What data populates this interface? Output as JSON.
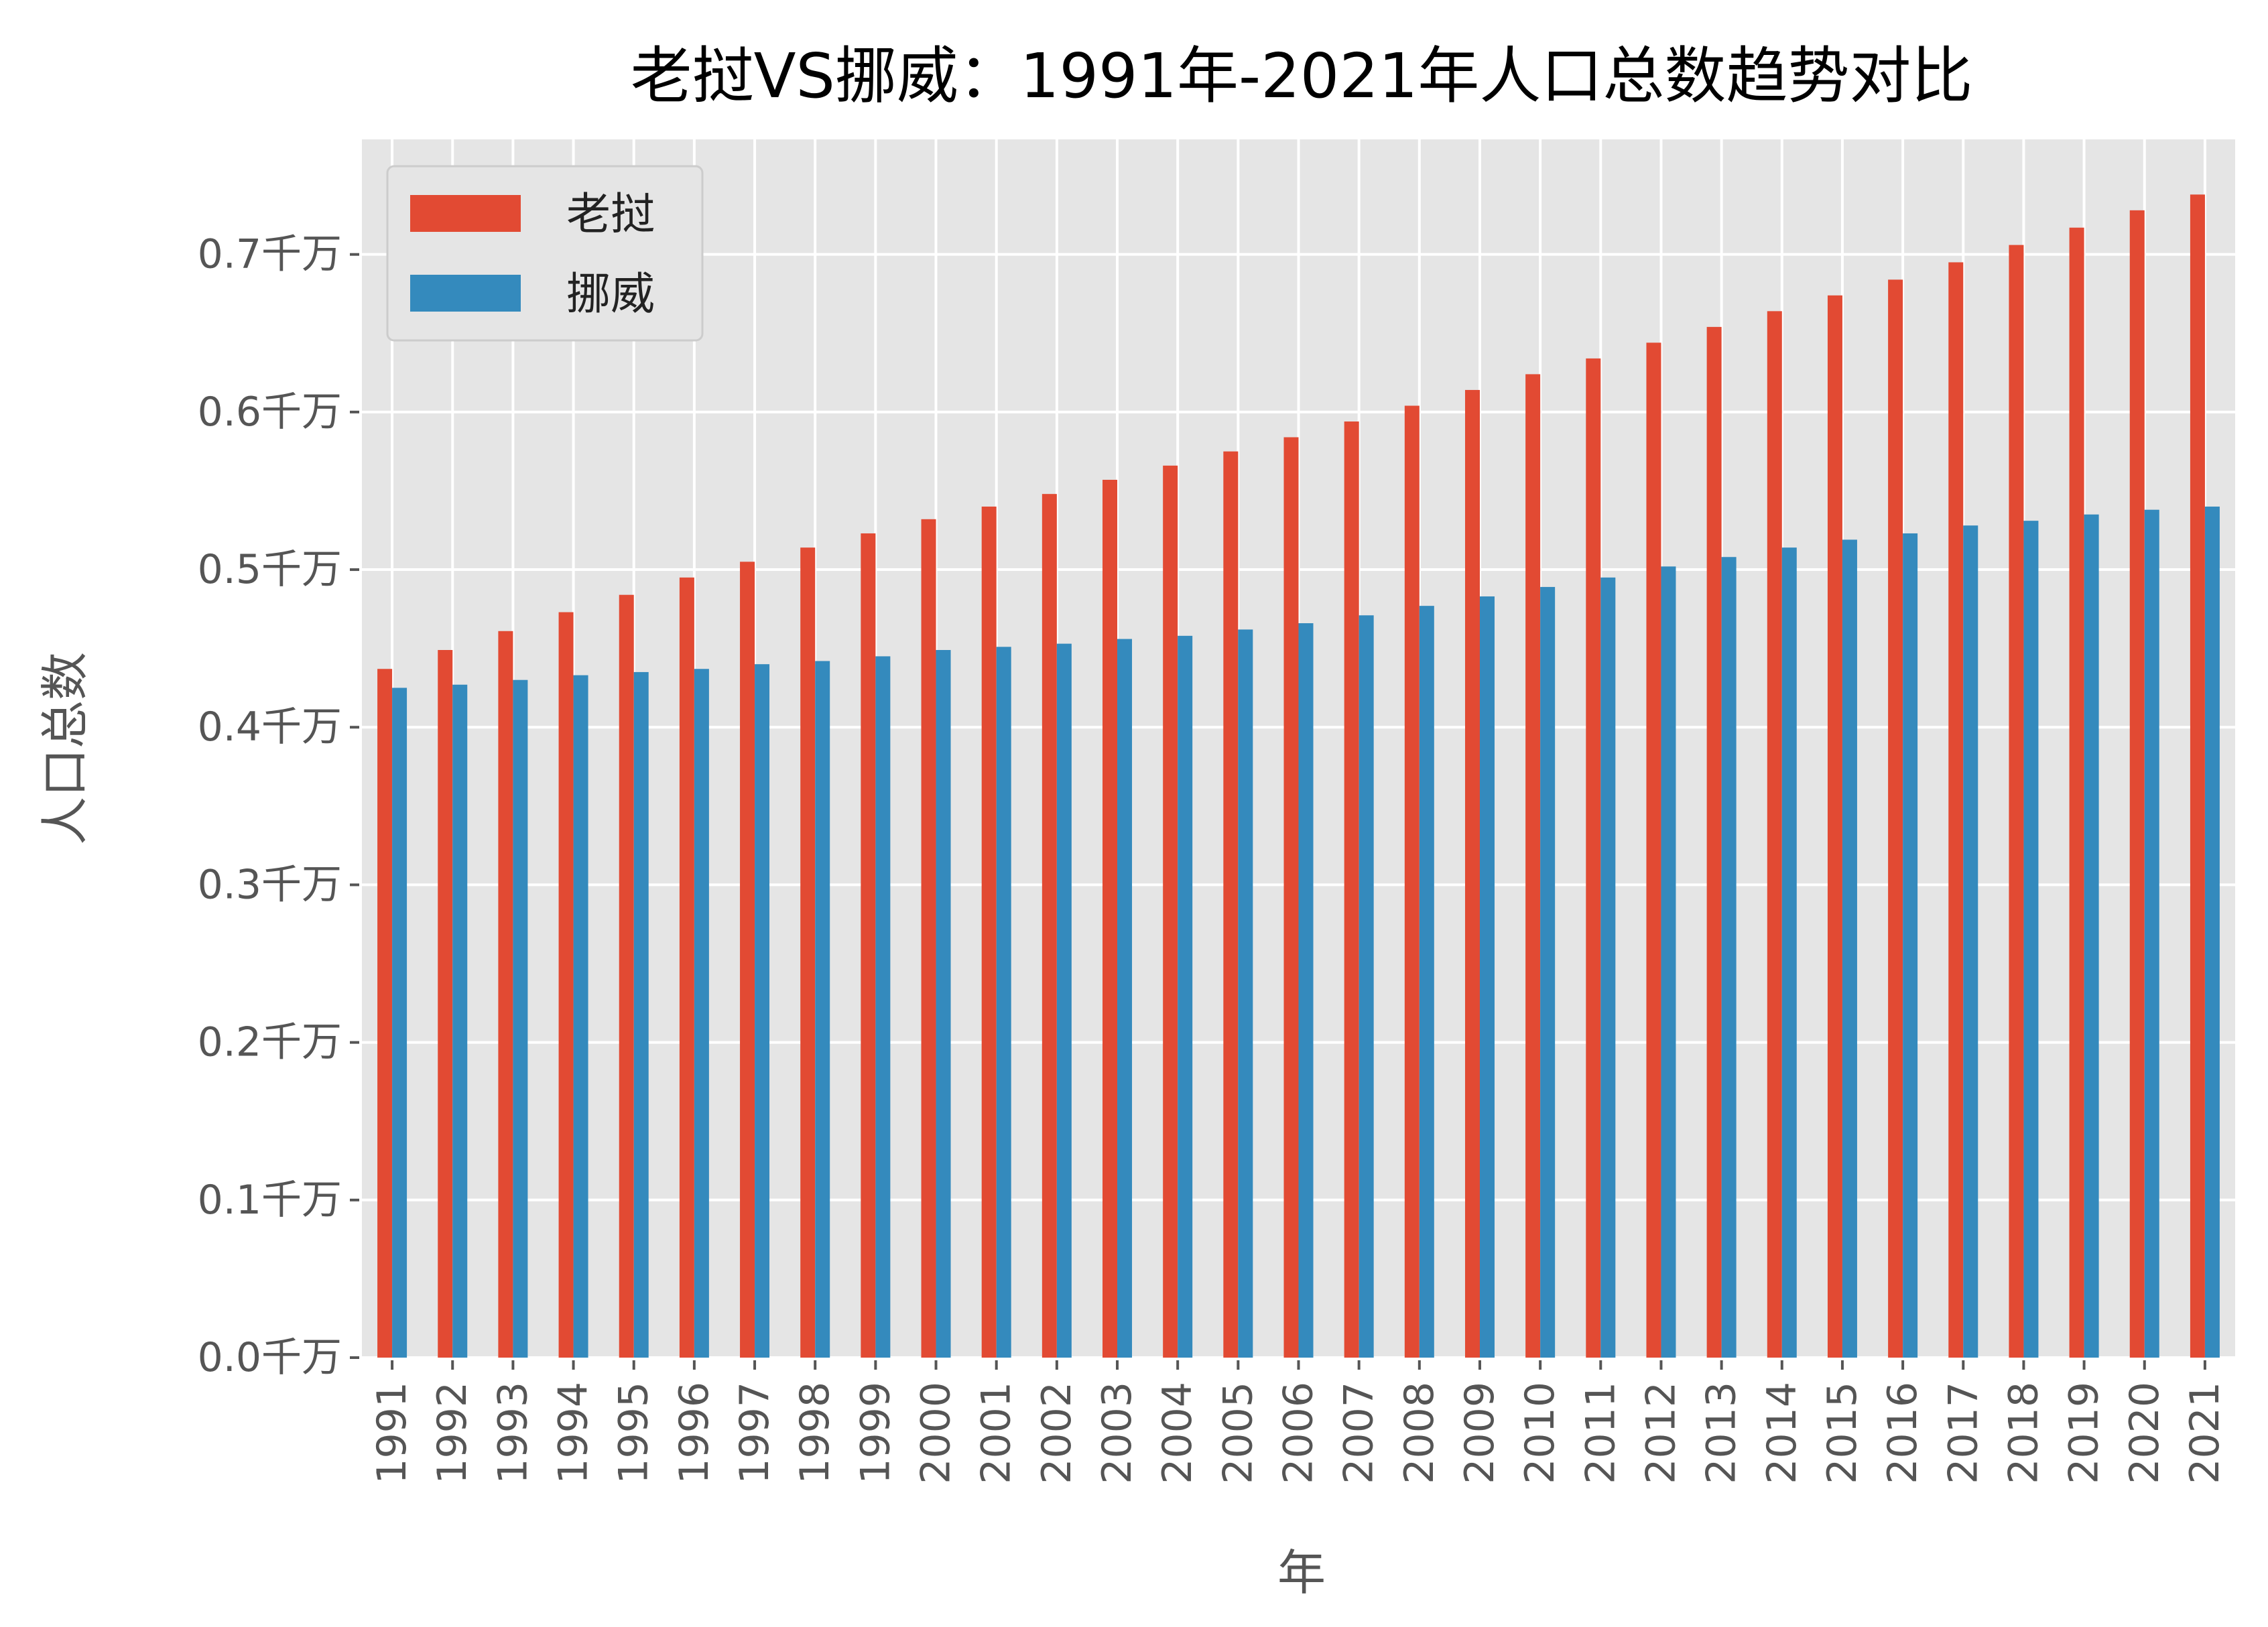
{
  "chart_data": {
    "type": "bar",
    "title": "老挝VS挪威：1991年-2021年人口总数趋势对比",
    "xlabel": "年",
    "ylabel": "人口总数",
    "y_tick_labels": [
      "0.0千万",
      "0.1千万",
      "0.2千万",
      "0.3千万",
      "0.4千万",
      "0.5千万",
      "0.6千万",
      "0.7千万"
    ],
    "y_ticks": [
      0.0,
      0.1,
      0.2,
      0.3,
      0.4,
      0.5,
      0.6,
      0.7
    ],
    "ylim": [
      0,
      0.773
    ],
    "grid": true,
    "legend_position": "top-left",
    "categories": [
      "1991",
      "1992",
      "1993",
      "1994",
      "1995",
      "1996",
      "1997",
      "1998",
      "1999",
      "2000",
      "2001",
      "2002",
      "2003",
      "2004",
      "2005",
      "2006",
      "2007",
      "2008",
      "2009",
      "2010",
      "2011",
      "2012",
      "2013",
      "2014",
      "2015",
      "2016",
      "2017",
      "2018",
      "2019",
      "2020",
      "2021"
    ],
    "series": [
      {
        "name": "老挝",
        "color": "#E24A33",
        "values": [
          0.437,
          0.449,
          0.461,
          0.473,
          0.484,
          0.495,
          0.505,
          0.514,
          0.523,
          0.532,
          0.54,
          0.548,
          0.557,
          0.566,
          0.575,
          0.584,
          0.594,
          0.604,
          0.614,
          0.624,
          0.634,
          0.644,
          0.654,
          0.664,
          0.674,
          0.684,
          0.695,
          0.706,
          0.717,
          0.728,
          0.738
        ]
      },
      {
        "name": "挪威",
        "color": "#348ABD",
        "values": [
          0.425,
          0.427,
          0.43,
          0.433,
          0.435,
          0.437,
          0.44,
          0.442,
          0.445,
          0.449,
          0.451,
          0.453,
          0.456,
          0.458,
          0.462,
          0.466,
          0.471,
          0.477,
          0.483,
          0.489,
          0.495,
          0.502,
          0.508,
          0.514,
          0.519,
          0.523,
          0.528,
          0.531,
          0.535,
          0.538,
          0.54
        ]
      }
    ]
  }
}
